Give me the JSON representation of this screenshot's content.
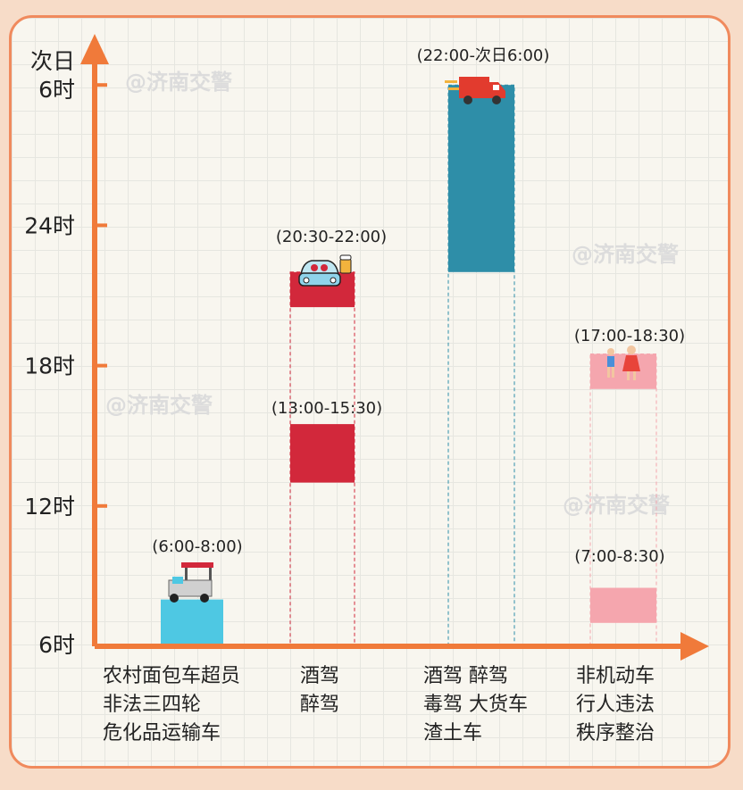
{
  "watermark": "@济南交警",
  "colors": {
    "axis": "#f07a3a",
    "cyan": "#4ec8e3",
    "red": "#d2283b",
    "teal": "#2e8ea8",
    "pink": "#f5a6ae"
  },
  "chart_data": {
    "type": "bar",
    "title": "",
    "xlabel": "",
    "ylabel": "",
    "y_unit": "hour of day",
    "ylim": [
      6,
      30
    ],
    "y_ticks": [
      {
        "value": 6,
        "label": "6时"
      },
      {
        "value": 12,
        "label": "12时"
      },
      {
        "value": 18,
        "label": "18时"
      },
      {
        "value": 24,
        "label": "24时"
      },
      {
        "value": 30,
        "label_line1": "次日",
        "label_line2": "6时"
      }
    ],
    "categories": [
      {
        "lines": [
          "农村面包车超员",
          "非法三四轮",
          "危化品运输车"
        ],
        "icon": "tricycle-icon",
        "color": "cyan",
        "ranges": [
          {
            "start": 6,
            "end": 8,
            "label": "(6:00-8:00)"
          }
        ]
      },
      {
        "lines": [
          "酒驾",
          "醉驾"
        ],
        "icon": "drunk-car-icon",
        "color": "red",
        "ranges": [
          {
            "start": 13,
            "end": 15.5,
            "label": "(13:00-15:30)"
          },
          {
            "start": 20.5,
            "end": 22,
            "label": "(20:30-22:00)"
          }
        ]
      },
      {
        "lines": [
          "酒驾  醉驾",
          "毒驾  大货车",
          "渣土车"
        ],
        "icon": "truck-icon",
        "color": "teal",
        "ranges": [
          {
            "start": 22,
            "end": 30,
            "label": "(22:00-次日6:00)"
          }
        ]
      },
      {
        "lines": [
          "非机动车",
          "行人违法",
          "秩序整治"
        ],
        "icon": "pedestrians-icon",
        "color": "pink",
        "ranges": [
          {
            "start": 7,
            "end": 8.5,
            "label": "(7:00-8:30)"
          },
          {
            "start": 17,
            "end": 18.5,
            "label": "(17:00-18:30)"
          }
        ]
      }
    ]
  }
}
